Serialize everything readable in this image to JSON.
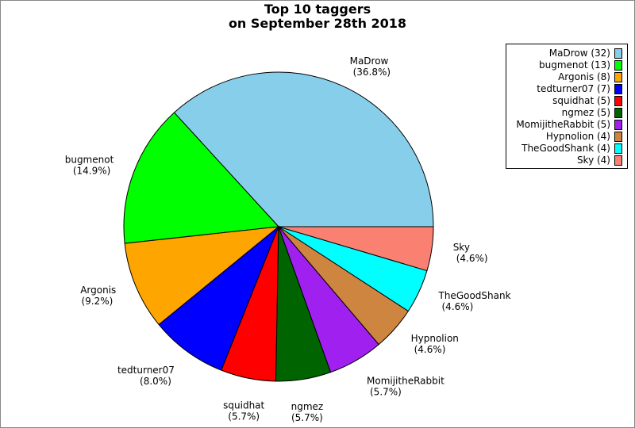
{
  "title": {
    "line1": "Top 10 taggers",
    "line2": "on September 28th 2018"
  },
  "chart_data": {
    "type": "pie",
    "title": "Top 10 taggers on September 28th 2018",
    "legend_position": "top-right",
    "start_angle": "3 o'clock, counter-clockwise",
    "slices": [
      {
        "name": "MaDrow",
        "value": 32,
        "percent": "36.8%",
        "legend": "MaDrow (32)",
        "color": "#87ceeb"
      },
      {
        "name": "bugmenot",
        "value": 13,
        "percent": "14.9%",
        "legend": "bugmenot (13)",
        "color": "#00ff00"
      },
      {
        "name": "Argonis",
        "value": 8,
        "percent": "9.2%",
        "legend": "Argonis (8)",
        "color": "#ffa500"
      },
      {
        "name": "tedturner07",
        "value": 7,
        "percent": "8.0%",
        "legend": "tedturner07 (7)",
        "color": "#0000ff"
      },
      {
        "name": "squidhat",
        "value": 5,
        "percent": "5.7%",
        "legend": "squidhat (5)",
        "color": "#ff0000"
      },
      {
        "name": "ngmez",
        "value": 5,
        "percent": "5.7%",
        "legend": "ngmez (5)",
        "color": "#006400"
      },
      {
        "name": "MomijitheRabbit",
        "value": 5,
        "percent": "5.7%",
        "legend": "MomijitheRabbit (5)",
        "color": "#a020f0"
      },
      {
        "name": "Hypnolion",
        "value": 4,
        "percent": "4.6%",
        "legend": "Hypnolion (4)",
        "color": "#cd853f"
      },
      {
        "name": "TheGoodShank",
        "value": 4,
        "percent": "4.6%",
        "legend": "TheGoodShank (4)",
        "color": "#00ffff"
      },
      {
        "name": "Sky",
        "value": 4,
        "percent": "4.6%",
        "legend": "Sky (4)",
        "color": "#fa8072"
      }
    ]
  }
}
